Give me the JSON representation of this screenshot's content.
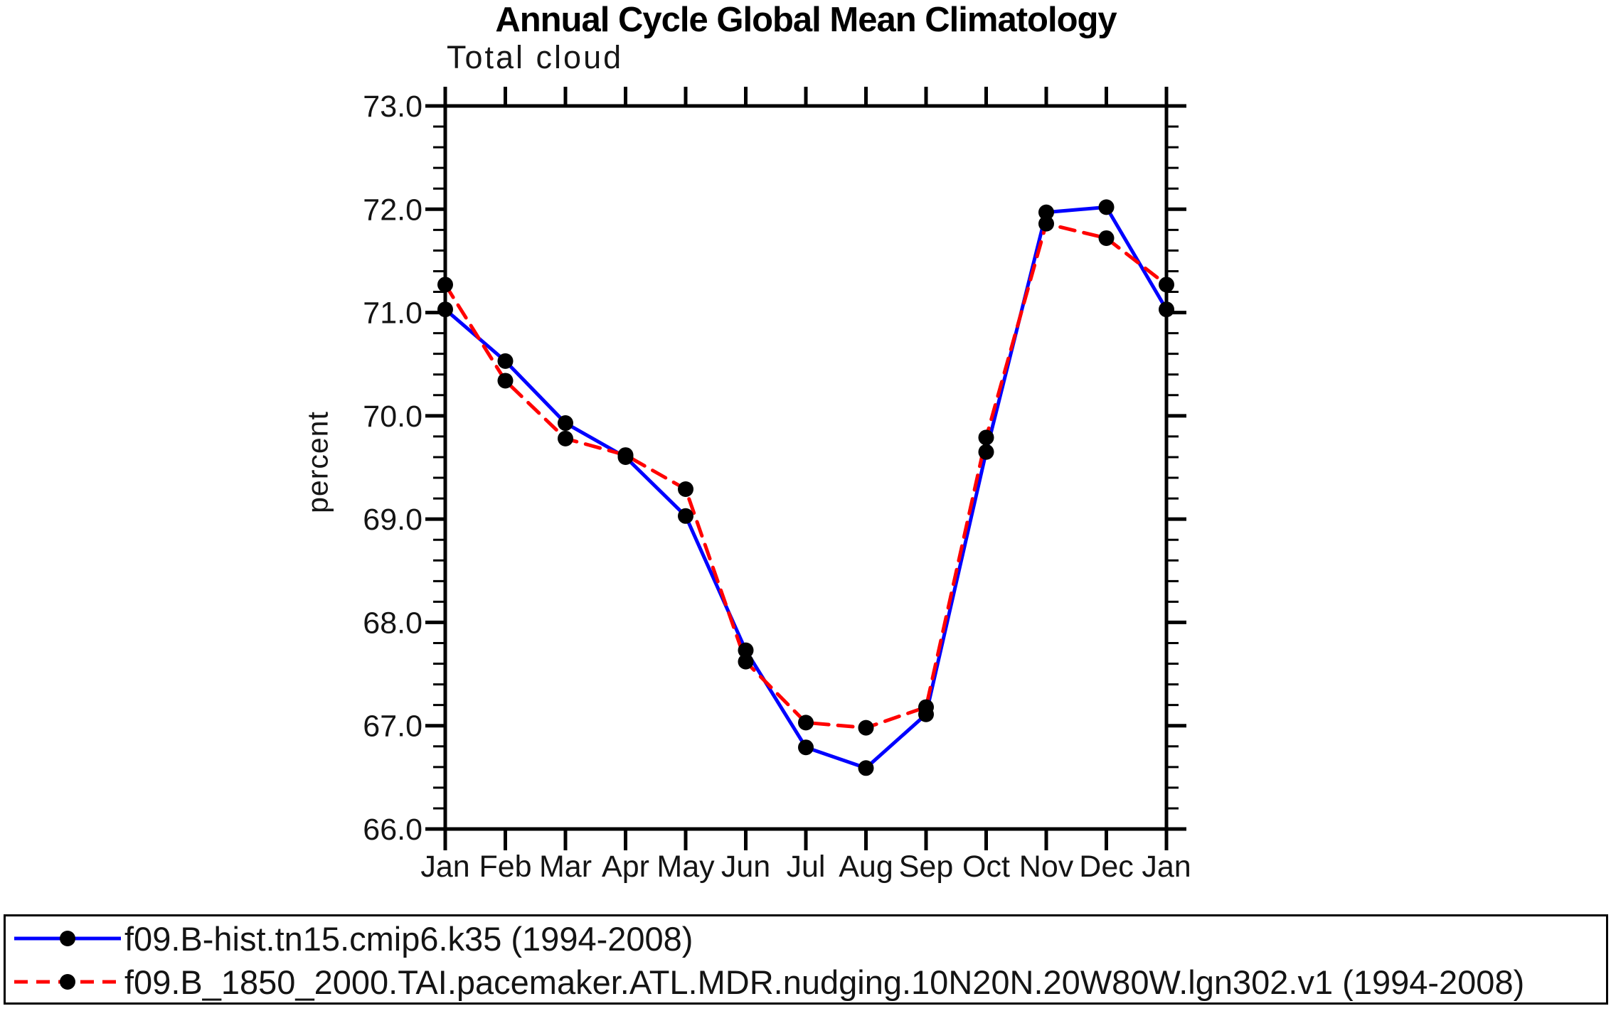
{
  "chart_data": {
    "type": "line",
    "title": "Annual Cycle Global Mean Climatology",
    "subtitle": "Total cloud",
    "xlabel": "",
    "ylabel": "percent",
    "ylim": [
      66.0,
      73.0
    ],
    "ytick_major_interval": 1.0,
    "ytick_minor_interval": 0.2,
    "ytick_labels": [
      "73.0",
      "72.0",
      "71.0",
      "70.0",
      "69.0",
      "68.0",
      "67.0",
      "66.0"
    ],
    "categories": [
      "Jan",
      "Feb",
      "Mar",
      "Apr",
      "May",
      "Jun",
      "Jul",
      "Aug",
      "Sep",
      "Oct",
      "Nov",
      "Dec",
      "Jan"
    ],
    "grid": false,
    "frame": "box",
    "axis_color": "#000000",
    "marker_color": "#000000",
    "legend_position": "bottom-box",
    "series": [
      {
        "name": "f09.B-hist.tn15.cmip6.k35 (1994-2008)",
        "color": "#0000ff",
        "line_style": "solid",
        "marker": "filled-circle",
        "values": [
          71.03,
          70.53,
          69.93,
          69.6,
          69.03,
          67.73,
          66.79,
          66.59,
          67.11,
          69.65,
          71.97,
          72.02,
          71.03
        ]
      },
      {
        "name": "f09.B_1850_2000.TAI.pacemaker.ATL.MDR.nudging.10N20N.20W80W.lgn302.v1 (1994-2008)",
        "color": "#ff0000",
        "line_style": "dashed",
        "marker": "filled-circle",
        "values": [
          71.27,
          70.34,
          69.78,
          69.62,
          69.29,
          67.62,
          67.03,
          66.98,
          67.18,
          69.79,
          71.86,
          71.72,
          71.27
        ]
      }
    ]
  }
}
